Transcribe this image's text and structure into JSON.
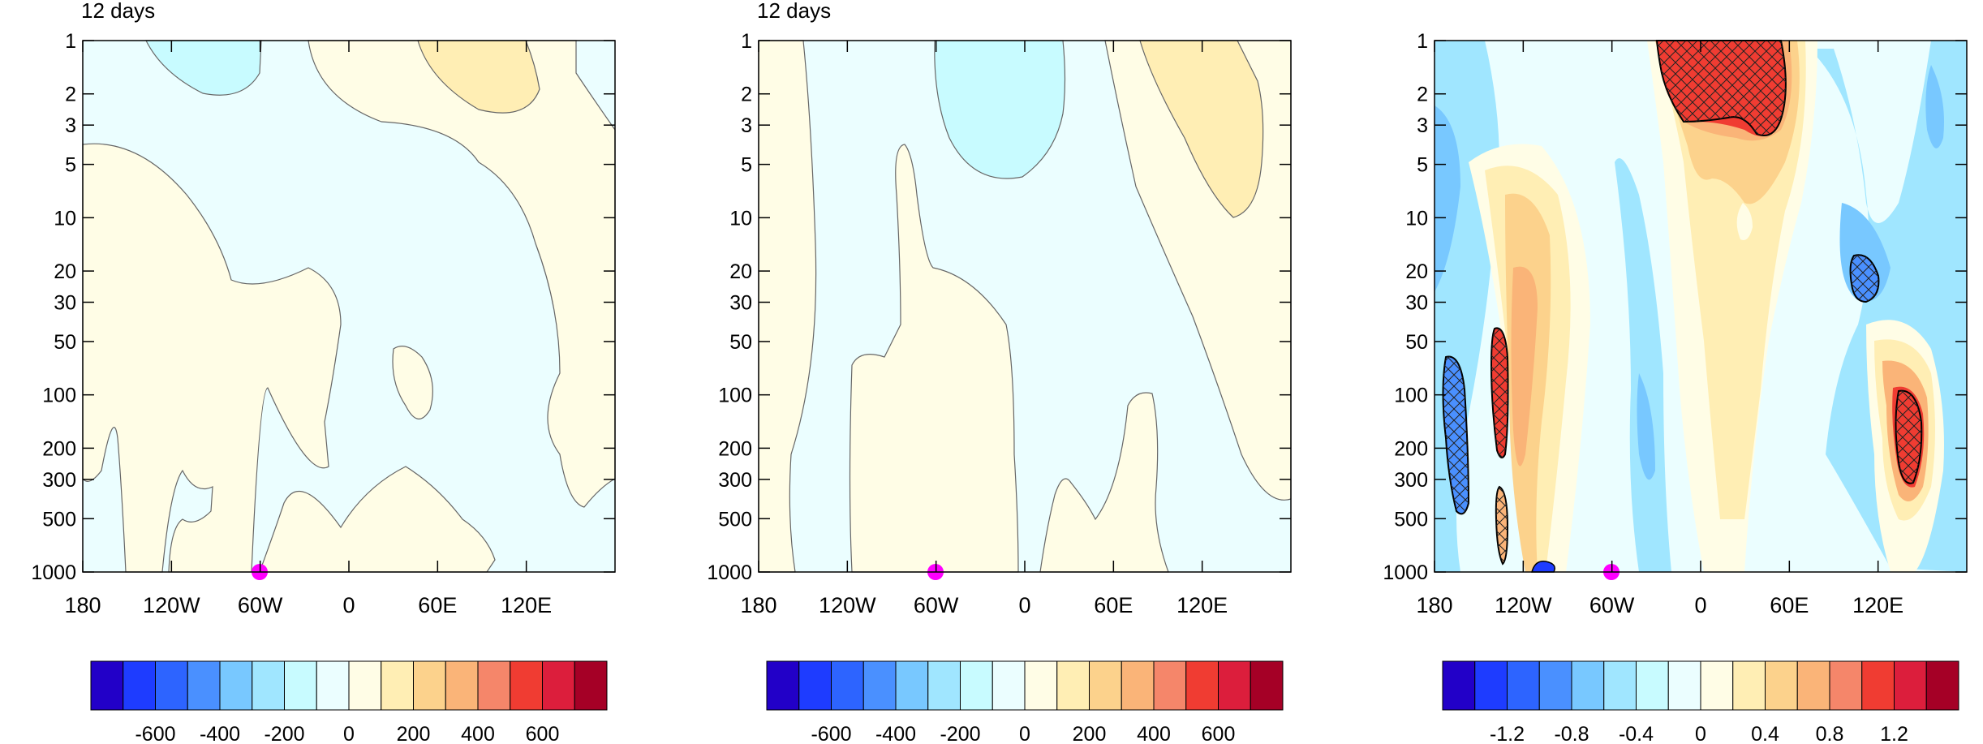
{
  "chart_data": [
    {
      "type": "heatmap",
      "title": "12 days",
      "x_ticks": [
        "180",
        "120W",
        "60W",
        "0",
        "60E",
        "120E"
      ],
      "y_ticks": [
        "1",
        "2",
        "3",
        "5",
        "10",
        "20",
        "30",
        "50",
        "100",
        "200",
        "300",
        "500",
        "1000"
      ],
      "y_scale": "log",
      "ylim": [
        1000,
        1
      ],
      "xlim": [
        -180,
        180
      ],
      "marker": {
        "x": -60,
        "y": 1000,
        "color": "#ff00ff"
      },
      "colorbar": {
        "labels": [
          "-600",
          "-400",
          "-200",
          "0",
          "200",
          "400",
          "600"
        ]
      }
    },
    {
      "type": "heatmap",
      "title": "12 days",
      "x_ticks": [
        "180",
        "120W",
        "60W",
        "0",
        "60E",
        "120E"
      ],
      "y_ticks": [
        "1",
        "2",
        "3",
        "5",
        "10",
        "20",
        "30",
        "50",
        "100",
        "200",
        "300",
        "500",
        "1000"
      ],
      "y_scale": "log",
      "ylim": [
        1000,
        1
      ],
      "xlim": [
        -180,
        180
      ],
      "marker": {
        "x": -60,
        "y": 1000,
        "color": "#ff00ff"
      },
      "colorbar": {
        "labels": [
          "-600",
          "-400",
          "-200",
          "0",
          "200",
          "400",
          "600"
        ]
      }
    },
    {
      "type": "heatmap",
      "title": "",
      "x_ticks": [
        "180",
        "120W",
        "60W",
        "0",
        "60E",
        "120E"
      ],
      "y_ticks": [
        "1",
        "2",
        "3",
        "5",
        "10",
        "20",
        "30",
        "50",
        "100",
        "200",
        "300",
        "500",
        "1000"
      ],
      "y_scale": "log",
      "ylim": [
        1000,
        1
      ],
      "xlim": [
        -180,
        180
      ],
      "marker": {
        "x": -60,
        "y": 1000,
        "color": "#ff00ff"
      },
      "colorbar": {
        "labels": [
          "-1.2",
          "-0.8",
          "-0.4",
          "0",
          "0.4",
          "0.8",
          "1.2"
        ]
      }
    }
  ],
  "colors": {
    "palette": [
      "#2200c8",
      "#1e3cff",
      "#2d64ff",
      "#4a90ff",
      "#78c8ff",
      "#a0e6ff",
      "#c8fbff",
      "#ebfeff",
      "#fffde6",
      "#ffeeb4",
      "#fcd28c",
      "#fab478",
      "#f5866a",
      "#f03c32",
      "#dc1e3c",
      "#a50026"
    ],
    "contour": "#555555",
    "marker": "#ff00ff"
  }
}
